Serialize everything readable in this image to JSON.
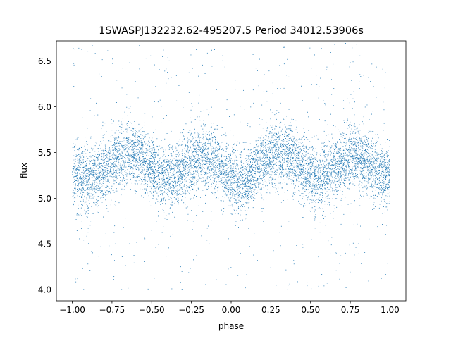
{
  "chart_data": {
    "type": "scatter",
    "title": "1SWASPJ132232.62-495207.5 Period 34012.53906s",
    "xlabel": "phase",
    "ylabel": "flux",
    "xlim": [
      -1.1,
      1.1
    ],
    "ylim": [
      3.88,
      6.72
    ],
    "x_ticks": [
      {
        "value": -1.0,
        "label": "−1.00"
      },
      {
        "value": -0.75,
        "label": "−0.75"
      },
      {
        "value": -0.5,
        "label": "−0.50"
      },
      {
        "value": -0.25,
        "label": "−0.25"
      },
      {
        "value": 0.0,
        "label": "0.00"
      },
      {
        "value": 0.25,
        "label": "0.25"
      },
      {
        "value": 0.5,
        "label": "0.50"
      },
      {
        "value": 0.75,
        "label": "0.75"
      },
      {
        "value": 1.0,
        "label": "1.00"
      }
    ],
    "y_ticks": [
      {
        "value": 4.0,
        "label": "4.0"
      },
      {
        "value": 4.5,
        "label": "4.5"
      },
      {
        "value": 5.0,
        "label": "5.0"
      },
      {
        "value": 5.5,
        "label": "5.5"
      },
      {
        "value": 6.0,
        "label": "6.0"
      },
      {
        "value": 6.5,
        "label": "6.5"
      }
    ],
    "grid": false,
    "legend": false,
    "point_color": "#1f77b4",
    "phase_range": [
      -1.0,
      1.0
    ],
    "trend": {
      "x": [
        -1.0,
        -0.9,
        -0.8,
        -0.75,
        -0.7,
        -0.65,
        -0.6,
        -0.55,
        -0.5,
        -0.45,
        -0.4,
        -0.35,
        -0.3,
        -0.25,
        -0.2,
        -0.15,
        -0.1,
        -0.05,
        0.0,
        0.05,
        0.1,
        0.15,
        0.2,
        0.25,
        0.3,
        0.35,
        0.4,
        0.45,
        0.5,
        0.55,
        0.6,
        0.65,
        0.7,
        0.75,
        0.8,
        0.85,
        0.9,
        0.95,
        1.0
      ],
      "y": [
        5.25,
        5.22,
        5.3,
        5.38,
        5.46,
        5.5,
        5.5,
        5.44,
        5.34,
        5.25,
        5.22,
        5.25,
        5.32,
        5.4,
        5.46,
        5.46,
        5.4,
        5.3,
        5.2,
        5.15,
        5.2,
        5.3,
        5.38,
        5.46,
        5.5,
        5.5,
        5.44,
        5.34,
        5.25,
        5.22,
        5.25,
        5.32,
        5.4,
        5.46,
        5.46,
        5.4,
        5.3,
        5.25,
        5.25
      ]
    }
  }
}
